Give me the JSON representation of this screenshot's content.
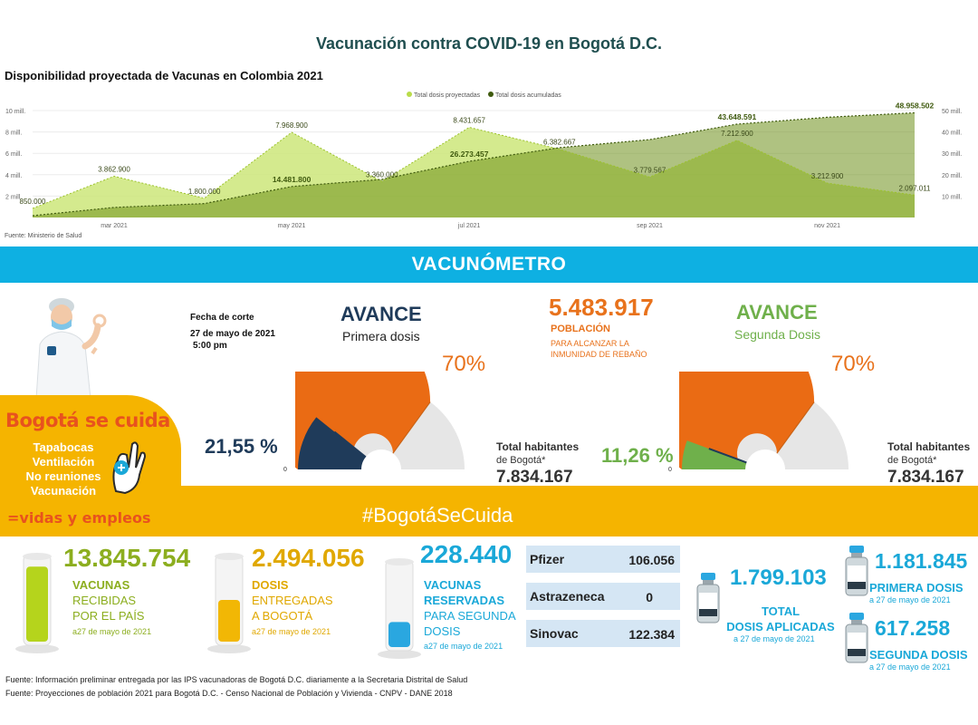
{
  "header": {
    "title": "Vacunación contra COVID-19 en Bogotá D.C."
  },
  "chart_data": {
    "type": "area",
    "title": "Disponibilidad proyectada de Vacunas en Colombia 2021",
    "source": "Fuente: Ministerio de Salud",
    "legend": [
      "Total dosis proyectadas",
      "Total dosis acumuladas"
    ],
    "legend_position": "top-center",
    "x_ticks": [
      "mar 2021",
      "may 2021",
      "jul 2021",
      "sep 2021",
      "nov 2021"
    ],
    "y_left_ticks": [
      "2 mill.",
      "4 mill.",
      "6 mill.",
      "8 mill.",
      "10 mill."
    ],
    "y_right_ticks": [
      "10 mill.",
      "20 mill.",
      "30 mill.",
      "40 mill.",
      "50 mill."
    ],
    "y_left_range": [
      0,
      10000000
    ],
    "y_right_range": [
      0,
      50000000
    ],
    "series": [
      {
        "name": "Total dosis proyectadas",
        "color": "#c5e56b",
        "axis": "left",
        "x": [
          "2021-02-01",
          "2021-03-01",
          "2021-04-01",
          "2021-05-01",
          "2021-06-01",
          "2021-07-01",
          "2021-08-01",
          "2021-09-01",
          "2021-10-01",
          "2021-11-01",
          "2021-12-01"
        ],
        "values": [
          850000,
          3862900,
          1800000,
          7968900,
          3360000,
          8431657,
          6382667,
          3779567,
          7212900,
          3212900,
          2097011
        ],
        "labels": [
          "850.000",
          "3.862.900",
          "1.800.000",
          "7.968.900",
          "3.360.000",
          "8.431.657",
          "6.382.667",
          "3.779.567",
          "7.212.900",
          "3.212.900",
          "2.097.011"
        ]
      },
      {
        "name": "Total dosis acumuladas",
        "color": "#5a7a1a",
        "axis": "right",
        "x": [
          "2021-02-01",
          "2021-03-01",
          "2021-04-01",
          "2021-05-01",
          "2021-06-01",
          "2021-07-01",
          "2021-08-01",
          "2021-09-01",
          "2021-10-01",
          "2021-11-01",
          "2021-12-01"
        ],
        "values": [
          850000,
          4712900,
          6512900,
          14481800,
          17841800,
          26273457,
          32656124,
          36435691,
          43648591,
          46861491,
          48958502
        ],
        "labels": [
          "",
          "",
          "",
          "14.481.800",
          "",
          "26.273.457",
          "",
          "",
          "43.648.591",
          "",
          "48.958.502"
        ]
      }
    ]
  },
  "banner": {
    "title": "VACUNÓMETRO"
  },
  "cuida": {
    "title": "Bogotá se cuida",
    "items": [
      "Tapabocas",
      "Ventilación",
      "No reuniones",
      "Vacunación"
    ],
    "bottom": "=vidas y empleos"
  },
  "hashtag": "#BogotáSeCuida",
  "corte": {
    "label": "Fecha de corte",
    "date": "27 de mayo de 2021",
    "time": "5:00 pm"
  },
  "gauge1": {
    "title": "AVANCE",
    "subtitle": "Primera dosis",
    "target_label": "70%",
    "value_label": "21,55 %",
    "zero": "0",
    "value": 0.2155,
    "target": 0.7,
    "hab_label": "Total habitantes",
    "hab_sub": "de Bogotá*",
    "hab_value": "7.834.167"
  },
  "gauge2": {
    "title": "AVANCE",
    "subtitle": "Segunda Dosis",
    "target_label": "70%",
    "value_label": "11,26 %",
    "zero": "0",
    "value": 0.1126,
    "target": 0.7,
    "hab_label": "Total habitantes",
    "hab_sub": "de Bogotá*",
    "hab_value": "7.834.167"
  },
  "poblacion": {
    "value": "5.483.917",
    "label": "POBLACIÓN",
    "sub1": "PARA ALCANZAR LA",
    "sub2": "INMUNIDAD DE REBAÑO"
  },
  "stats": {
    "recibidas": {
      "value": "13.845.754",
      "l1": "VACUNAS",
      "l2": "RECIBIDAS",
      "l3": "POR EL PAÍS",
      "date": "a27 de mayo de 2021",
      "fill": 0.9
    },
    "entregadas": {
      "value": "2.494.056",
      "l1": "DOSIS",
      "l2": "ENTREGADAS",
      "l3": "A BOGOTÁ",
      "date": "a27 de mayo de 2021",
      "fill": 0.5
    },
    "reservadas": {
      "value": "228.440",
      "l1": "VACUNAS",
      "l2": "RESERVADAS",
      "l3": "PARA SEGUNDA",
      "l4": "DOSIS",
      "date": "a27 de mayo de 2021",
      "fill": 0.3
    }
  },
  "vaccines": [
    {
      "name": "Pfizer",
      "value": "106.056"
    },
    {
      "name": "Astrazeneca",
      "value": "0"
    },
    {
      "name": "Sinovac",
      "value": "122.384"
    }
  ],
  "aplicadas": {
    "total": {
      "value": "1.799.103",
      "l1": "TOTAL",
      "l2": "DOSIS APLICADAS",
      "date": "a  27 de mayo de 2021"
    },
    "primera": {
      "value": "1.181.845",
      "label": "PRIMERA DOSIS",
      "date": "a  27 de mayo de 2021"
    },
    "segunda": {
      "value": "617.258",
      "label": "SEGUNDA DOSIS",
      "date": "a  27 de mayo de 2021"
    }
  },
  "footer": {
    "line1": "Fuente: Información preliminar entregada por las IPS vacunadoras de Bogotá D.C. diariamente a la Secretaria Distrital de Salud",
    "line2": "Fuente: Proyecciones de población 2021 para Bogotá D.C. - Censo Nacional de Población y Vivienda - CNPV - DANE 2018"
  },
  "colors": {
    "banner": "#0eb0e2",
    "yellow": "#f5b400",
    "orange": "#e8721c",
    "navy": "#1f3b5a",
    "green": "#6fb04b",
    "olive": "#8cae1f",
    "amber": "#e0a800",
    "blue": "#1aa8d8"
  },
  "icons": [
    "nurse-illustration",
    "ok-hand-icon",
    "tube-icon",
    "vaccine-vial-icon"
  ]
}
